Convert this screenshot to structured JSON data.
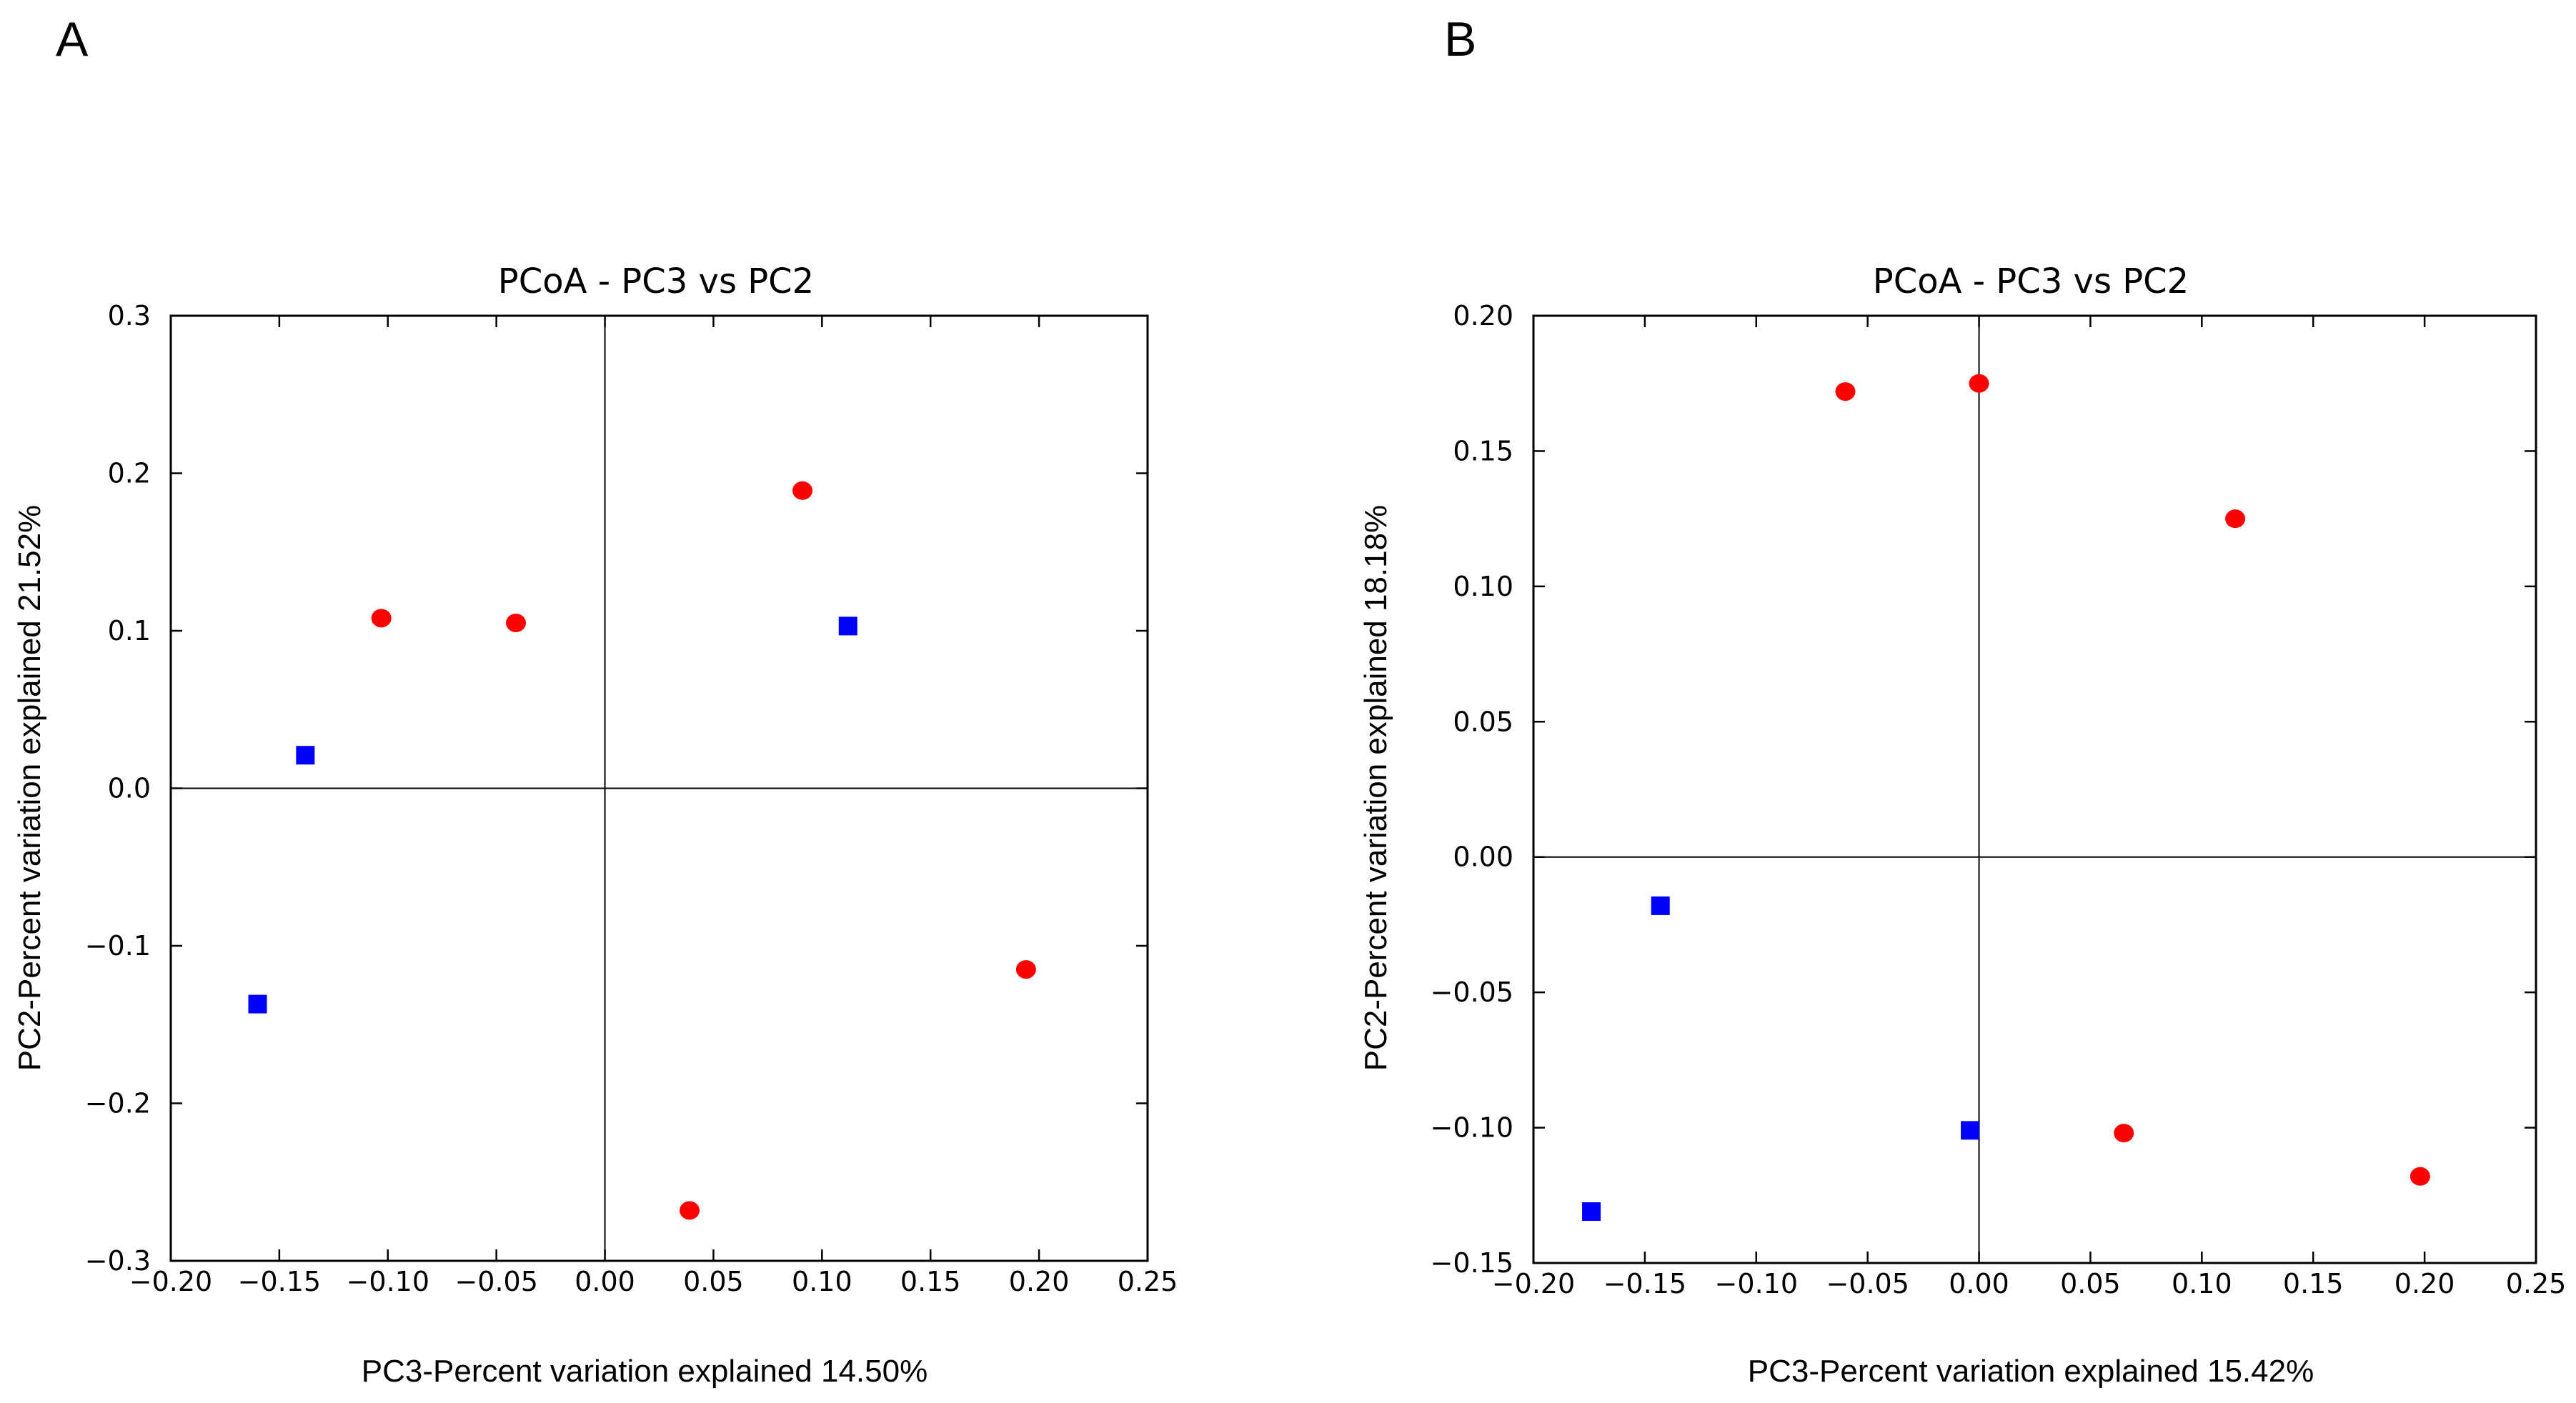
{
  "chart_data": [
    {
      "panel_label": "A",
      "type": "scatter",
      "title": "PCoA - PC3 vs PC2",
      "xlabel": "PC3-Percent variation explained 14.50%",
      "ylabel": "PC2-Percent variation explained  21.52%",
      "xlim": [
        -0.2,
        0.25
      ],
      "ylim": [
        -0.3,
        0.3
      ],
      "x_ticks": [
        -0.2,
        -0.15,
        -0.1,
        -0.05,
        0.0,
        0.05,
        0.1,
        0.15,
        0.2,
        0.25
      ],
      "x_tick_labels": [
        "−0.20",
        "−0.15",
        "−0.10",
        "−0.05",
        "0.00",
        "0.05",
        "0.10",
        "0.15",
        "0.20",
        "0.25"
      ],
      "y_ticks": [
        -0.3,
        -0.2,
        -0.1,
        0.0,
        0.1,
        0.2,
        0.3
      ],
      "y_tick_labels": [
        "−0.3",
        "−0.2",
        "−0.1",
        "0.0",
        "0.1",
        "0.2",
        "0.3"
      ],
      "grid": false,
      "series": [
        {
          "marker": "circle",
          "color": "#ff0000",
          "points": [
            {
              "x": -0.103,
              "y": 0.108
            },
            {
              "x": -0.041,
              "y": 0.105
            },
            {
              "x": 0.091,
              "y": 0.189
            },
            {
              "x": 0.194,
              "y": -0.115
            },
            {
              "x": 0.039,
              "y": -0.268
            }
          ]
        },
        {
          "marker": "square",
          "color": "#0000ff",
          "points": [
            {
              "x": -0.138,
              "y": 0.021
            },
            {
              "x": -0.16,
              "y": -0.137
            },
            {
              "x": 0.112,
              "y": 0.103
            }
          ]
        }
      ]
    },
    {
      "panel_label": "B",
      "type": "scatter",
      "title": "PCoA - PC3 vs PC2",
      "xlabel": "PC3-Percent variation explained 15.42%",
      "ylabel": "PC2-Percent variation explained  18.18%",
      "xlim": [
        -0.2,
        0.25
      ],
      "ylim": [
        -0.15,
        0.2
      ],
      "x_ticks": [
        -0.2,
        -0.15,
        -0.1,
        -0.05,
        0.0,
        0.05,
        0.1,
        0.15,
        0.2,
        0.25
      ],
      "x_tick_labels": [
        "−0.20",
        "−0.15",
        "−0.10",
        "−0.05",
        "0.00",
        "0.05",
        "0.10",
        "0.15",
        "0.20",
        "0.25"
      ],
      "y_ticks": [
        -0.15,
        -0.1,
        -0.05,
        0.0,
        0.05,
        0.1,
        0.15,
        0.2
      ],
      "y_tick_labels": [
        "−0.15",
        "−0.10",
        "−0.05",
        "0.00",
        "0.05",
        "0.10",
        "0.15",
        "0.20"
      ],
      "grid": false,
      "series": [
        {
          "marker": "circle",
          "color": "#ff0000",
          "points": [
            {
              "x": -0.06,
              "y": 0.172
            },
            {
              "x": 0.0,
              "y": 0.175
            },
            {
              "x": 0.115,
              "y": 0.125
            },
            {
              "x": 0.065,
              "y": -0.102
            },
            {
              "x": 0.198,
              "y": -0.118
            }
          ]
        },
        {
          "marker": "square",
          "color": "#0000ff",
          "points": [
            {
              "x": -0.143,
              "y": -0.018
            },
            {
              "x": -0.004,
              "y": -0.101
            },
            {
              "x": -0.174,
              "y": -0.131
            }
          ]
        }
      ]
    }
  ]
}
